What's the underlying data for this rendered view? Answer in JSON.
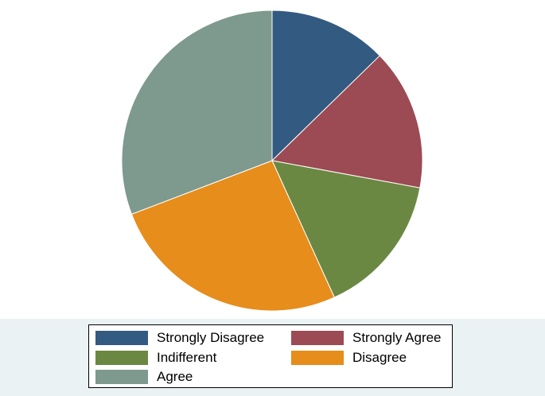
{
  "chart_data": {
    "type": "pie",
    "title": "",
    "start_angle_deg": 90,
    "direction": "clockwise",
    "legend_position": "bottom",
    "slices": [
      {
        "label": "Strongly Disagree",
        "value": 12.7,
        "color": "#335a80"
      },
      {
        "label": "Strongly Agree",
        "value": 15.2,
        "color": "#9c4a53"
      },
      {
        "label": "Indifferent",
        "value": 15.3,
        "color": "#6b8842"
      },
      {
        "label": "Disagree",
        "value": 26.0,
        "color": "#e68d1b"
      },
      {
        "label": "Agree",
        "value": 30.8,
        "color": "#7e998d"
      }
    ]
  }
}
